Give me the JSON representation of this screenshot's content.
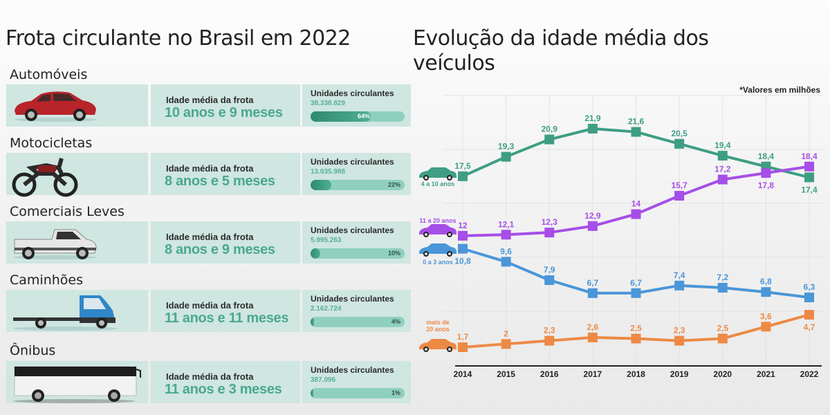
{
  "left": {
    "title": "Frota circulante no Brasil em 2022",
    "categories": [
      {
        "name": "Automóveis",
        "icon": "sedan-car-icon",
        "color": "#b8242a",
        "age_label": "Idade média da frota",
        "age_value": "10 anos e 9 meses",
        "units_label": "Unidades circulantes",
        "units_value": "38.338.829",
        "share_pct": 64,
        "share_label": "64%"
      },
      {
        "name": "Motocicletas",
        "icon": "motorcycle-icon",
        "color": "#2a2a2a",
        "age_label": "Idade média da frota",
        "age_value": "8 anos e 5 meses",
        "units_label": "Unidades circulantes",
        "units_value": "13.035.988",
        "share_pct": 22,
        "share_label": "22%"
      },
      {
        "name": "Comerciais Leves",
        "icon": "pickup-truck-icon",
        "color": "#e6e6e6",
        "age_label": "Idade média da frota",
        "age_value": "8 anos e 9 meses",
        "units_label": "Unidades circulantes",
        "units_value": "5.995.263",
        "share_pct": 10,
        "share_label": "10%"
      },
      {
        "name": "Caminhões",
        "icon": "truck-icon",
        "color": "#2f86c8",
        "age_label": "Idade média da frota",
        "age_value": "11 anos e 11 meses",
        "units_label": "Unidades circulantes",
        "units_value": "2.162.724",
        "share_pct": 4,
        "share_label": "4%"
      },
      {
        "name": "Ônibus",
        "icon": "bus-icon",
        "color": "#f2f2f2",
        "age_label": "Idade média da frota",
        "age_value": "11 anos e 3 meses",
        "units_label": "Unidades circulantes",
        "units_value": "387.096",
        "share_pct": 1,
        "share_label": "1%"
      }
    ]
  },
  "chart_data": {
    "type": "line",
    "title": "Evolução da idade média dos veículos",
    "note": "*Valores em milhões",
    "xlabel": "",
    "ylabel": "",
    "x": [
      "2014",
      "2015",
      "2016",
      "2017",
      "2018",
      "2019",
      "2020",
      "2021",
      "2022"
    ],
    "ylim": [
      0,
      24
    ],
    "grid": true,
    "series": [
      {
        "name": "4 a 10 anos",
        "color": "#3e9e84",
        "icon": "teal-car-icon",
        "values": [
          17.5,
          19.3,
          20.9,
          21.9,
          21.6,
          20.5,
          19.4,
          18.4,
          17.4
        ],
        "labels": [
          "17,5",
          "19,3",
          "20,9",
          "21,9",
          "21,6",
          "20,5",
          "19,4",
          "18,4",
          "17,4"
        ],
        "label_pos": [
          "above",
          "above",
          "above",
          "above",
          "above",
          "above",
          "above",
          "above",
          "below"
        ]
      },
      {
        "name": "11 a 20 anos",
        "color": "#a64ee8",
        "icon": "purple-car-icon",
        "values": [
          12,
          12.1,
          12.3,
          12.9,
          14,
          15.7,
          17.2,
          17.8,
          18.4
        ],
        "labels": [
          "12",
          "12,1",
          "12,3",
          "12,9",
          "14",
          "15,7",
          "17,2",
          "17,8",
          "18,4"
        ],
        "label_pos": [
          "above",
          "above",
          "above",
          "above",
          "above",
          "above",
          "above",
          "below",
          "above"
        ]
      },
      {
        "name": "0 a 3 anos",
        "color": "#4a96d8",
        "icon": "blue-car-icon",
        "values": [
          10.8,
          9.6,
          7.9,
          6.7,
          6.7,
          7.4,
          7.2,
          6.8,
          6.3
        ],
        "labels": [
          "10,8",
          "9,6",
          "7,9",
          "6,7",
          "6,7",
          "7,4",
          "7,2",
          "6,8",
          "6,3"
        ],
        "label_pos": [
          "below",
          "above",
          "above",
          "above",
          "above",
          "above",
          "above",
          "above",
          "above"
        ]
      },
      {
        "name": "mais de 20 anos",
        "color": "#ec8a45",
        "icon": "classic-car-icon",
        "values": [
          1.7,
          2,
          2.3,
          2.6,
          2.5,
          2.3,
          2.5,
          3.6,
          4.7
        ],
        "labels": [
          "1,7",
          "2",
          "2,3",
          "2,6",
          "2,5",
          "2,3",
          "2,5",
          "3,6",
          "4,7"
        ],
        "label_pos": [
          "above",
          "above",
          "above",
          "above",
          "above",
          "above",
          "above",
          "above",
          "below"
        ]
      }
    ]
  }
}
